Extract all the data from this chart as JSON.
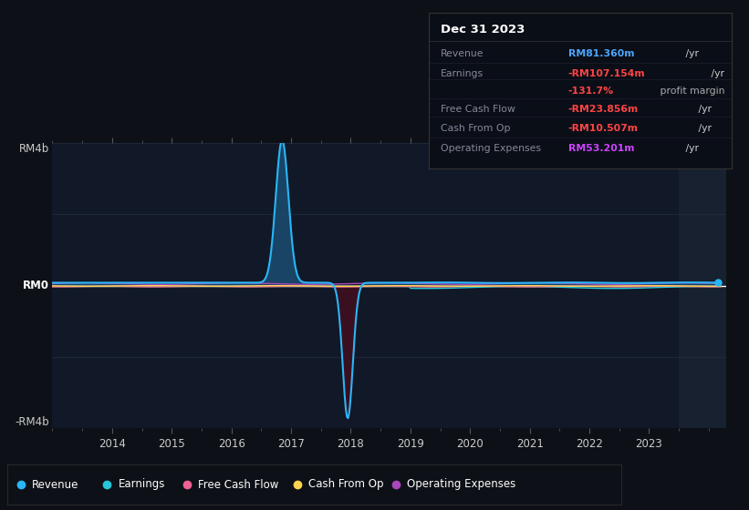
{
  "background_color": "#0d1117",
  "plot_bg_color": "#111827",
  "ylim": [
    -4000000000.0,
    4000000000.0
  ],
  "xlim": [
    2013.0,
    2024.3
  ],
  "xticks": [
    2014,
    2015,
    2016,
    2017,
    2018,
    2019,
    2020,
    2021,
    2022,
    2023
  ],
  "revenue_color": "#29b6f6",
  "revenue_fill_pos_color": "#1a4a6e",
  "revenue_fill_neg_color": "#3d1020",
  "earnings_color": "#26c6da",
  "fcf_color": "#f06292",
  "cashfromop_color": "#ffd54f",
  "opex_color": "#ab47bc",
  "legend_entries": [
    {
      "label": "Revenue",
      "color": "#29b6f6"
    },
    {
      "label": "Earnings",
      "color": "#26c6da"
    },
    {
      "label": "Free Cash Flow",
      "color": "#f06292"
    },
    {
      "label": "Cash From Op",
      "color": "#ffd54f"
    },
    {
      "label": "Operating Expenses",
      "color": "#ab47bc"
    }
  ],
  "shaded_right_x": 2023.5,
  "grid_color": "#2a3344",
  "info_rows": [
    {
      "label": "Revenue",
      "value": "RM81.360m",
      "value_color": "#4da6ff",
      "suffix": " /yr",
      "suffix_color": "#cccccc"
    },
    {
      "label": "Earnings",
      "value": "-RM107.154m",
      "value_color": "#ff4444",
      "suffix": " /yr",
      "suffix_color": "#cccccc"
    },
    {
      "label": "",
      "value": "-131.7%",
      "value_color": "#ff4444",
      "suffix": " profit margin",
      "suffix_color": "#aaaaaa"
    },
    {
      "label": "Free Cash Flow",
      "value": "-RM23.856m",
      "value_color": "#ff4444",
      "suffix": " /yr",
      "suffix_color": "#cccccc"
    },
    {
      "label": "Cash From Op",
      "value": "-RM10.507m",
      "value_color": "#ff4444",
      "suffix": " /yr",
      "suffix_color": "#cccccc"
    },
    {
      "label": "Operating Expenses",
      "value": "RM53.201m",
      "value_color": "#cc44ff",
      "suffix": " /yr",
      "suffix_color": "#cccccc"
    }
  ]
}
